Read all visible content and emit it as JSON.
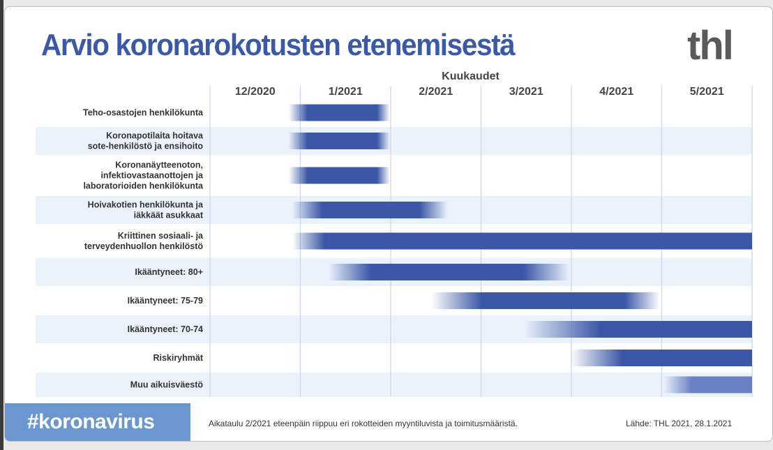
{
  "title": "Arvio koronarokotusten etenemisestä",
  "logo": "thl",
  "hashtag": "#koronavirus",
  "footer_note": "Aikataulu 2/2021 eteenpäin riippuu eri rokotteiden myyntiluvista ja toimitusmääristä.",
  "source": "Lähde: THL 2021, 28.1.2021",
  "colors": {
    "bar": "#3b57a6",
    "bar_light": "#6b80c2",
    "band": "#eaf2fb",
    "title": "#3a5aa8"
  },
  "chart_data": {
    "type": "gantt",
    "x_title": "Kuukaudet",
    "x_ticks": [
      "12/2020",
      "1/2021",
      "2/2021",
      "3/2021",
      "4/2021",
      "5/2021"
    ],
    "x_unit": "months since start of 12/2020",
    "xlim": [
      0,
      6
    ],
    "rows": [
      {
        "label": [
          "Teho-osastojen henkilökunta"
        ],
        "fade_start": 0.87,
        "start": 1.08,
        "end": 1.85,
        "fade_end": 1.99
      },
      {
        "label": [
          "Koronapotilaita hoitava",
          "sote-henkilöstö ja ensihoito"
        ],
        "fade_start": 0.87,
        "start": 1.08,
        "end": 1.85,
        "fade_end": 1.99
      },
      {
        "label": [
          "Koronanäytteenoton,",
          "infektiovastaanottojen ja",
          "laboratorioiden henkilökunta"
        ],
        "fade_start": 0.87,
        "start": 1.08,
        "end": 1.85,
        "fade_end": 1.99
      },
      {
        "label": [
          "Hoivakotien henkilökunta ja",
          "iäkkäät asukkaat"
        ],
        "fade_start": 0.91,
        "start": 1.24,
        "end": 2.32,
        "fade_end": 2.63
      },
      {
        "label": [
          "Kriittinen sosiaali- ja",
          "terveydenhuollon henkilöstö"
        ],
        "fade_start": 0.91,
        "start": 1.27,
        "end": 6,
        "fade_end": 6
      },
      {
        "label": [
          "Ikääntyneet: 80+"
        ],
        "fade_start": 1.31,
        "start": 1.78,
        "end": 3.47,
        "fade_end": 3.98
      },
      {
        "label": [
          "Ikääntyneet: 75-79"
        ],
        "fade_start": 2.45,
        "start": 3.01,
        "end": 4.59,
        "fade_end": 4.98
      },
      {
        "label": [
          "Ikääntyneet: 70-74"
        ],
        "fade_start": 3.47,
        "start": 4.32,
        "end": 6,
        "fade_end": 6
      },
      {
        "label": [
          "Riskiryhmät"
        ],
        "fade_start": 3.99,
        "start": 4.56,
        "end": 6,
        "fade_end": 6
      },
      {
        "label": [
          "Muu aikuisväestö"
        ],
        "fade_start": 5.02,
        "start": 5.33,
        "end": 6,
        "fade_end": 6,
        "light": true
      }
    ]
  }
}
